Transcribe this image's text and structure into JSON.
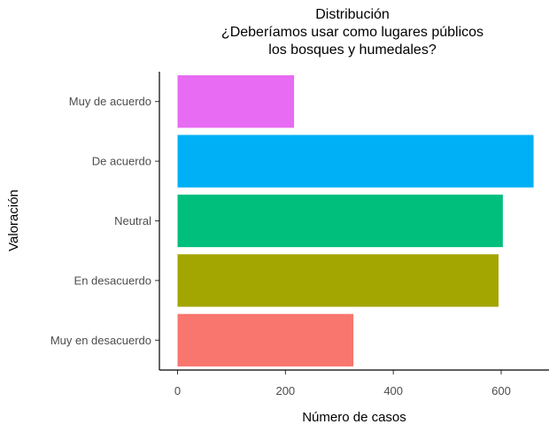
{
  "chart_data": {
    "type": "bar",
    "orientation": "horizontal",
    "title_lines": [
      "Distribución",
      "¿Deberíamos usar como lugares públicos",
      "los bosques y humedales?"
    ],
    "xlabel": "Número de casos",
    "ylabel": "Valoración",
    "categories": [
      "Muy en desacuerdo",
      "En desacuerdo",
      "Neutral",
      "De acuerdo",
      "Muy de acuerdo"
    ],
    "values": [
      326,
      595,
      603,
      660,
      216
    ],
    "colors": [
      "#F8766D",
      "#A3A500",
      "#00BF7D",
      "#00B0F6",
      "#E76BF3"
    ],
    "xlim": [
      0,
      680
    ],
    "xticks": [
      0,
      200,
      400,
      600
    ],
    "xtick_labels": [
      "0",
      "200",
      "400",
      "600"
    ],
    "grid": false,
    "legend": "none"
  }
}
